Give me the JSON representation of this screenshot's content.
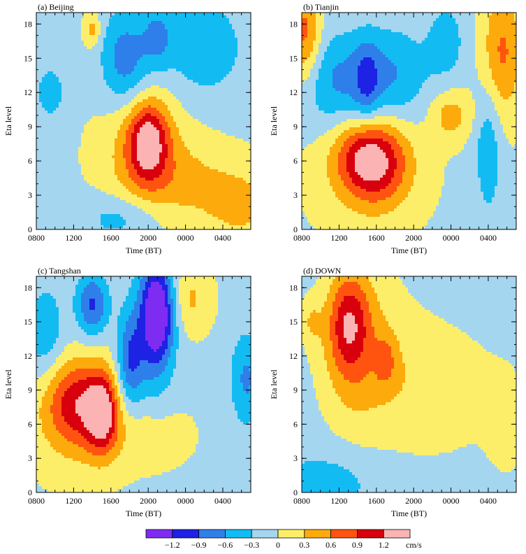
{
  "chart_data": {
    "type": "heatmap",
    "units": "cm/s",
    "colorbar": {
      "bounds": [
        -1.5,
        -1.2,
        -0.9,
        -0.6,
        -0.3,
        0,
        0.3,
        0.6,
        0.9,
        1.2,
        1.5
      ],
      "tick_labels": [
        "−1.2",
        "−0.9",
        "−0.6",
        "−0.3",
        "0",
        "0.3",
        "0.6",
        "0.9",
        "1.2"
      ],
      "tick_values": [
        -1.2,
        -0.9,
        -0.6,
        -0.3,
        0,
        0.3,
        0.6,
        0.9,
        1.2
      ],
      "colors": [
        "#7f2cf2",
        "#1d22e4",
        "#2f7fea",
        "#12bcf3",
        "#a4d6f0",
        "#fdee6a",
        "#fcaa0c",
        "#fe5410",
        "#d9000d",
        "#fbb3b3"
      ]
    },
    "x_ticks": [
      "0800",
      "1200",
      "1600",
      "2000",
      "0000",
      "0400"
    ],
    "x_tick_hours": [
      0,
      4,
      8,
      12,
      16,
      20
    ],
    "x_range_hours": [
      0,
      23
    ],
    "xlabel": "Time (BT)",
    "ylabel": "Eta level",
    "ylim": [
      0,
      19
    ],
    "y_ticks": [
      0,
      3,
      6,
      9,
      12,
      15,
      18
    ],
    "panels": [
      {
        "title": "(a)  Beijing",
        "blobs": [
          {
            "x": 12.0,
            "y": 7.8,
            "sx": 1.5,
            "sy": 2.4,
            "a": 1.15
          },
          {
            "x": 11.5,
            "y": 6.5,
            "sx": 3.2,
            "sy": 3.5,
            "a": 0.5
          },
          {
            "x": 17.0,
            "y": 4.0,
            "sx": 4.0,
            "sy": 2.5,
            "a": 0.35
          },
          {
            "x": 22.0,
            "y": 2.0,
            "sx": 2.5,
            "sy": 2.0,
            "a": 0.4
          },
          {
            "x": 9.5,
            "y": 15.0,
            "sx": 1.8,
            "sy": 3.0,
            "a": -0.7
          },
          {
            "x": 13.0,
            "y": 17.0,
            "sx": 1.2,
            "sy": 2.0,
            "a": -0.5
          },
          {
            "x": 18.0,
            "y": 16.0,
            "sx": 3.0,
            "sy": 3.0,
            "a": -0.5
          },
          {
            "x": 1.5,
            "y": 12.0,
            "sx": 1.0,
            "sy": 1.5,
            "a": -0.5
          },
          {
            "x": 9.0,
            "y": 1.0,
            "sx": 3.0,
            "sy": 1.5,
            "a": -0.4
          },
          {
            "x": 6.0,
            "y": 17.5,
            "sx": 0.6,
            "sy": 1.0,
            "a": 0.5
          }
        ],
        "bias": -0.05
      },
      {
        "title": "(b)  Tianjin",
        "blobs": [
          {
            "x": 8.0,
            "y": 6.0,
            "sx": 2.4,
            "sy": 2.5,
            "a": 1.0
          },
          {
            "x": 6.0,
            "y": 6.5,
            "sx": 2.0,
            "sy": 2.0,
            "a": 0.4
          },
          {
            "x": 7.0,
            "y": 5.0,
            "sx": 4.0,
            "sy": 3.5,
            "a": 0.35
          },
          {
            "x": 0.3,
            "y": 17.0,
            "sx": 1.2,
            "sy": 3.0,
            "a": 0.8
          },
          {
            "x": 21.5,
            "y": 15.5,
            "sx": 1.5,
            "sy": 4.0,
            "a": 0.7
          },
          {
            "x": 16.0,
            "y": 10.0,
            "sx": 1.5,
            "sy": 1.5,
            "a": 0.5
          },
          {
            "x": 4.0,
            "y": 13.0,
            "sx": 3.0,
            "sy": 3.0,
            "a": -0.6
          },
          {
            "x": 7.0,
            "y": 13.0,
            "sx": 1.0,
            "sy": 2.5,
            "a": -0.5
          },
          {
            "x": 10.0,
            "y": 13.5,
            "sx": 2.5,
            "sy": 3.0,
            "a": -0.5
          },
          {
            "x": 20.0,
            "y": 7.0,
            "sx": 1.0,
            "sy": 4.0,
            "a": -0.5
          },
          {
            "x": 15.5,
            "y": 16.5,
            "sx": 1.5,
            "sy": 2.5,
            "a": -0.4
          }
        ],
        "bias": -0.05
      },
      {
        "title": "(c)  Tangshan",
        "blobs": [
          {
            "x": 7.0,
            "y": 7.0,
            "sx": 1.2,
            "sy": 2.4,
            "a": 1.25
          },
          {
            "x": 4.0,
            "y": 8.0,
            "sx": 2.0,
            "sy": 2.5,
            "a": 0.7
          },
          {
            "x": 4.5,
            "y": 7.0,
            "sx": 3.5,
            "sy": 3.5,
            "a": 0.5
          },
          {
            "x": 12.0,
            "y": 5.0,
            "sx": 3.0,
            "sy": 2.0,
            "a": 0.25
          },
          {
            "x": 13.0,
            "y": 16.0,
            "sx": 1.2,
            "sy": 3.0,
            "a": -1.2
          },
          {
            "x": 12.5,
            "y": 14.0,
            "sx": 1.6,
            "sy": 4.5,
            "a": -0.6
          },
          {
            "x": 6.0,
            "y": 16.5,
            "sx": 1.2,
            "sy": 2.0,
            "a": -0.9
          },
          {
            "x": 10.0,
            "y": 11.5,
            "sx": 1.0,
            "sy": 3.0,
            "a": -0.8
          },
          {
            "x": 1.0,
            "y": 14.0,
            "sx": 1.5,
            "sy": 3.0,
            "a": -0.5
          },
          {
            "x": 22.5,
            "y": 10.0,
            "sx": 1.2,
            "sy": 3.0,
            "a": -0.6
          },
          {
            "x": 16.5,
            "y": 17.0,
            "sx": 1.5,
            "sy": 2.0,
            "a": 0.4
          }
        ],
        "bias": -0.05
      },
      {
        "title": "(d)  DOWN",
        "blobs": [
          {
            "x": 5.0,
            "y": 15.0,
            "sx": 1.5,
            "sy": 3.0,
            "a": 0.85
          },
          {
            "x": 5.5,
            "y": 13.0,
            "sx": 2.5,
            "sy": 5.0,
            "a": 0.45
          },
          {
            "x": 8.0,
            "y": 12.0,
            "sx": 4.0,
            "sy": 6.0,
            "a": 0.25
          },
          {
            "x": 9.0,
            "y": 11.5,
            "sx": 0.8,
            "sy": 1.5,
            "a": 0.45
          },
          {
            "x": 15.0,
            "y": 9.0,
            "sx": 4.5,
            "sy": 4.0,
            "a": 0.35
          },
          {
            "x": 22.0,
            "y": 6.0,
            "sx": 1.5,
            "sy": 3.0,
            "a": 0.35
          },
          {
            "x": 1.0,
            "y": 15.0,
            "sx": 0.8,
            "sy": 1.5,
            "a": 0.35
          },
          {
            "x": 3.0,
            "y": 1.0,
            "sx": 4.0,
            "sy": 2.0,
            "a": -0.3
          }
        ],
        "bias": -0.15
      }
    ]
  }
}
